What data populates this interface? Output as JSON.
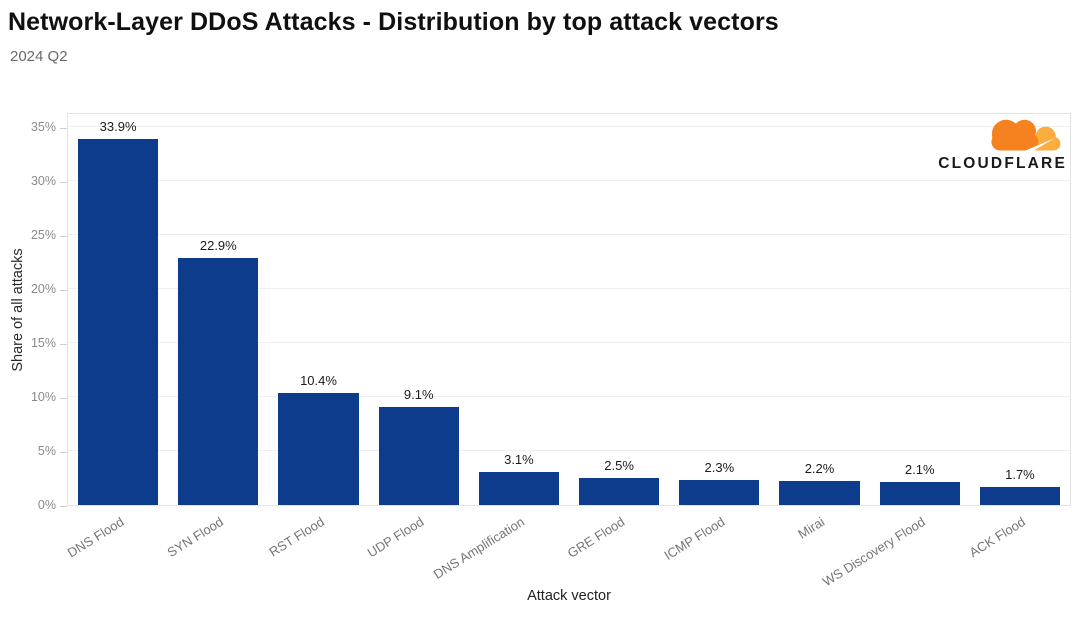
{
  "header": {
    "title": "Network-Layer DDoS Attacks - Distribution by top attack vectors",
    "subtitle": "2024 Q2"
  },
  "logo": {
    "wordmark": "CLOUDFLARE",
    "cloud_main_color": "#F6821F",
    "cloud_light_color": "#FBAD41"
  },
  "chart_data": {
    "type": "bar",
    "title": "Network-Layer DDoS Attacks - Distribution by top attack vectors",
    "subtitle": "2024 Q2",
    "categories": [
      "DNS Flood",
      "SYN Flood",
      "RST Flood",
      "UDP Flood",
      "DNS Amplification",
      "GRE Flood",
      "ICMP Flood",
      "Mirai",
      "WS Discovery Flood",
      "ACK Flood"
    ],
    "values": [
      33.9,
      22.9,
      10.4,
      9.1,
      3.1,
      2.5,
      2.3,
      2.2,
      2.1,
      1.7
    ],
    "value_labels": [
      "33.9%",
      "22.9%",
      "10.4%",
      "9.1%",
      "3.1%",
      "2.5%",
      "2.3%",
      "2.2%",
      "2.1%",
      "1.7%"
    ],
    "xlabel": "Attack vector",
    "ylabel": "Share of all attacks",
    "ylim": [
      0,
      35
    ],
    "yticks": [
      0,
      5,
      10,
      15,
      20,
      25,
      30,
      35
    ],
    "ytick_labels": [
      "0%",
      "5%",
      "10%",
      "15%",
      "20%",
      "25%",
      "30%",
      "35%"
    ],
    "grid": true,
    "legend": "none",
    "bar_color": "#0d3c8c",
    "x_label_rotation_deg": -32
  }
}
